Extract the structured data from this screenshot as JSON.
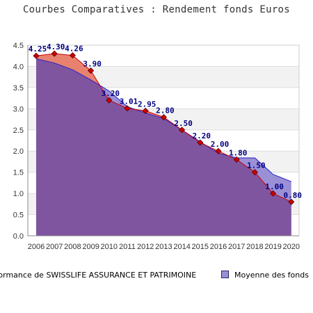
{
  "chart_data": {
    "type": "area",
    "title": "Courbes Comparatives : Rendement fonds Euros",
    "xlabel": "",
    "ylabel": "",
    "categories": [
      "2006",
      "2007",
      "2008",
      "2009",
      "2010",
      "2011",
      "2012",
      "2013",
      "2014",
      "2015",
      "2016",
      "2017",
      "2018",
      "2019",
      "2020"
    ],
    "ylim": [
      0,
      4.5
    ],
    "yticks": [
      "0.0",
      "0.5",
      "1.0",
      "1.5",
      "2.0",
      "2.5",
      "3.0",
      "3.5",
      "4.0",
      "4.5"
    ],
    "grid": true,
    "legend_position": "bottom",
    "series": [
      {
        "name": "Performance de SWISSLIFE ASSURANCE ET PATRIMOINE",
        "values": [
          4.25,
          4.3,
          4.26,
          3.9,
          3.2,
          3.01,
          2.95,
          2.8,
          2.5,
          2.2,
          2.0,
          1.8,
          1.5,
          1.0,
          0.8
        ],
        "labels": [
          "4.25",
          "4.30",
          "4.26",
          "3.90",
          "3.20",
          "3.01",
          "2.95",
          "2.80",
          "2.50",
          "2.20",
          "2.00",
          "1.80",
          "1.50",
          "1.00",
          "0.80"
        ],
        "fill_color": "#e8826f",
        "line_color": "#cc0000",
        "marker_color": "#cc0000"
      },
      {
        "name": "Moyenne des fonds",
        "values": [
          4.18,
          4.08,
          3.92,
          3.68,
          3.42,
          3.05,
          2.9,
          2.77,
          2.5,
          2.22,
          1.95,
          1.84,
          1.84,
          1.45,
          1.28
        ],
        "fill_color": "#9b8fd6",
        "line_color": "#2222cc"
      }
    ],
    "overlap_color": "#8055a0",
    "label_color": "#000080"
  }
}
